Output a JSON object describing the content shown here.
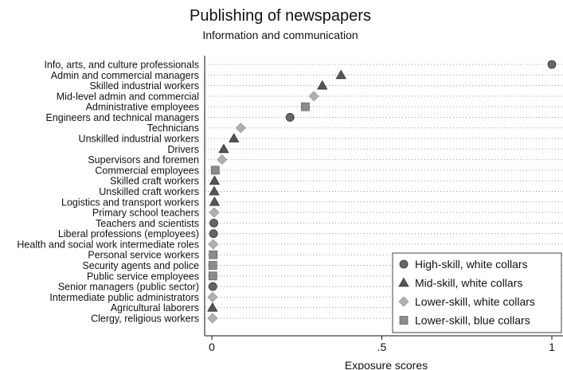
{
  "chart_data": {
    "type": "scatter",
    "title": "Publishing of newspapers",
    "subtitle": "Information and communication",
    "xlabel": "Exposure scores",
    "ylabel": "",
    "xlim": [
      0,
      1
    ],
    "x_ticks": [
      {
        "value": 0,
        "label": "0"
      },
      {
        "value": 0.5,
        "label": ".5"
      },
      {
        "value": 1,
        "label": "1"
      }
    ],
    "categories": [
      "Info, arts, and culture professionals",
      "Admin and commercial managers",
      "Skilled industrial workers",
      "Mid-level admin and commercial",
      "Administrative employees",
      "Engineers and technical managers",
      "Technicians",
      "Unskilled industrial workers",
      "Drivers",
      "Supervisors and foremen",
      "Commercial employees",
      "Skilled craft workers",
      "Unskilled craft workers",
      "Logistics and transport workers",
      "Primary school teachers",
      "Teachers and scientists",
      "Liberal professions (employees)",
      "Health and social work intermediate roles",
      "Personal service workers",
      "Security agents and police",
      "Public service employees",
      "Senior managers (public sector)",
      "Intermediate public administrators",
      "Agricultural laborers",
      "Clergy, religious workers"
    ],
    "points": [
      {
        "x": 1.0,
        "group": "high"
      },
      {
        "x": 0.38,
        "group": "mid"
      },
      {
        "x": 0.325,
        "group": "mid"
      },
      {
        "x": 0.3,
        "group": "lower"
      },
      {
        "x": 0.275,
        "group": "blue"
      },
      {
        "x": 0.23,
        "group": "high"
      },
      {
        "x": 0.085,
        "group": "lower"
      },
      {
        "x": 0.065,
        "group": "mid"
      },
      {
        "x": 0.035,
        "group": "mid"
      },
      {
        "x": 0.03,
        "group": "lower"
      },
      {
        "x": 0.01,
        "group": "blue"
      },
      {
        "x": 0.008,
        "group": "mid"
      },
      {
        "x": 0.007,
        "group": "mid"
      },
      {
        "x": 0.008,
        "group": "mid"
      },
      {
        "x": 0.007,
        "group": "lower"
      },
      {
        "x": 0.006,
        "group": "high"
      },
      {
        "x": 0.005,
        "group": "high"
      },
      {
        "x": 0.004,
        "group": "lower"
      },
      {
        "x": 0.004,
        "group": "blue"
      },
      {
        "x": 0.003,
        "group": "blue"
      },
      {
        "x": 0.003,
        "group": "blue"
      },
      {
        "x": 0.003,
        "group": "high"
      },
      {
        "x": 0.002,
        "group": "lower"
      },
      {
        "x": 0.002,
        "group": "mid"
      },
      {
        "x": 0.002,
        "group": "lower"
      }
    ],
    "groups": [
      {
        "key": "high",
        "name": "High-skill, white collars",
        "marker": "circle",
        "color": "#666666"
      },
      {
        "key": "mid",
        "name": "Mid-skill, white collars",
        "marker": "triangle",
        "color": "#555555"
      },
      {
        "key": "lower",
        "name": "Lower-skill, white collars",
        "marker": "diamond",
        "color": "#b0b0b0"
      },
      {
        "key": "blue",
        "name": "Lower-skill, blue collars",
        "marker": "square",
        "color": "#8c8c8c"
      }
    ],
    "legend_position": "bottom-right",
    "grid": "dotted horizontal"
  }
}
